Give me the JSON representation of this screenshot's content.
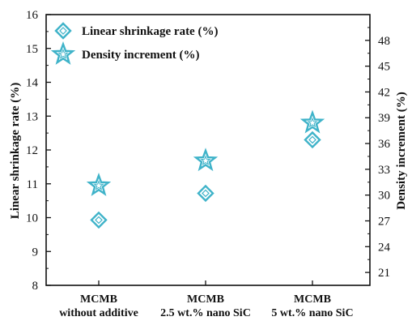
{
  "chart_data": {
    "type": "scatter",
    "categories": [
      "MCMB\nwithout additive",
      "MCMB\n2.5 wt.% nano SiC",
      "MCMB\n5 wt.% nano SiC"
    ],
    "series": [
      {
        "name": "Linear shrinkage rate (%)",
        "axis": "left",
        "marker": "diamond",
        "values": [
          9.93,
          10.72,
          12.3
        ]
      },
      {
        "name": "Density increment (%)",
        "axis": "right",
        "marker": "star",
        "values": [
          31.1,
          34.0,
          38.4
        ]
      }
    ],
    "ylabel": "Linear shrinkage rate (%)",
    "y2label": "Density increment (%)",
    "ylim": [
      8,
      16
    ],
    "y2lim": [
      19.5,
      51.0
    ],
    "yticks": [
      8,
      9,
      10,
      11,
      12,
      13,
      14,
      15,
      16
    ],
    "y2ticks": [
      21,
      24,
      27,
      30,
      33,
      36,
      39,
      42,
      45,
      48
    ],
    "legend_position": "top-left",
    "grid": false,
    "marker_color": "#3fb3c9"
  }
}
